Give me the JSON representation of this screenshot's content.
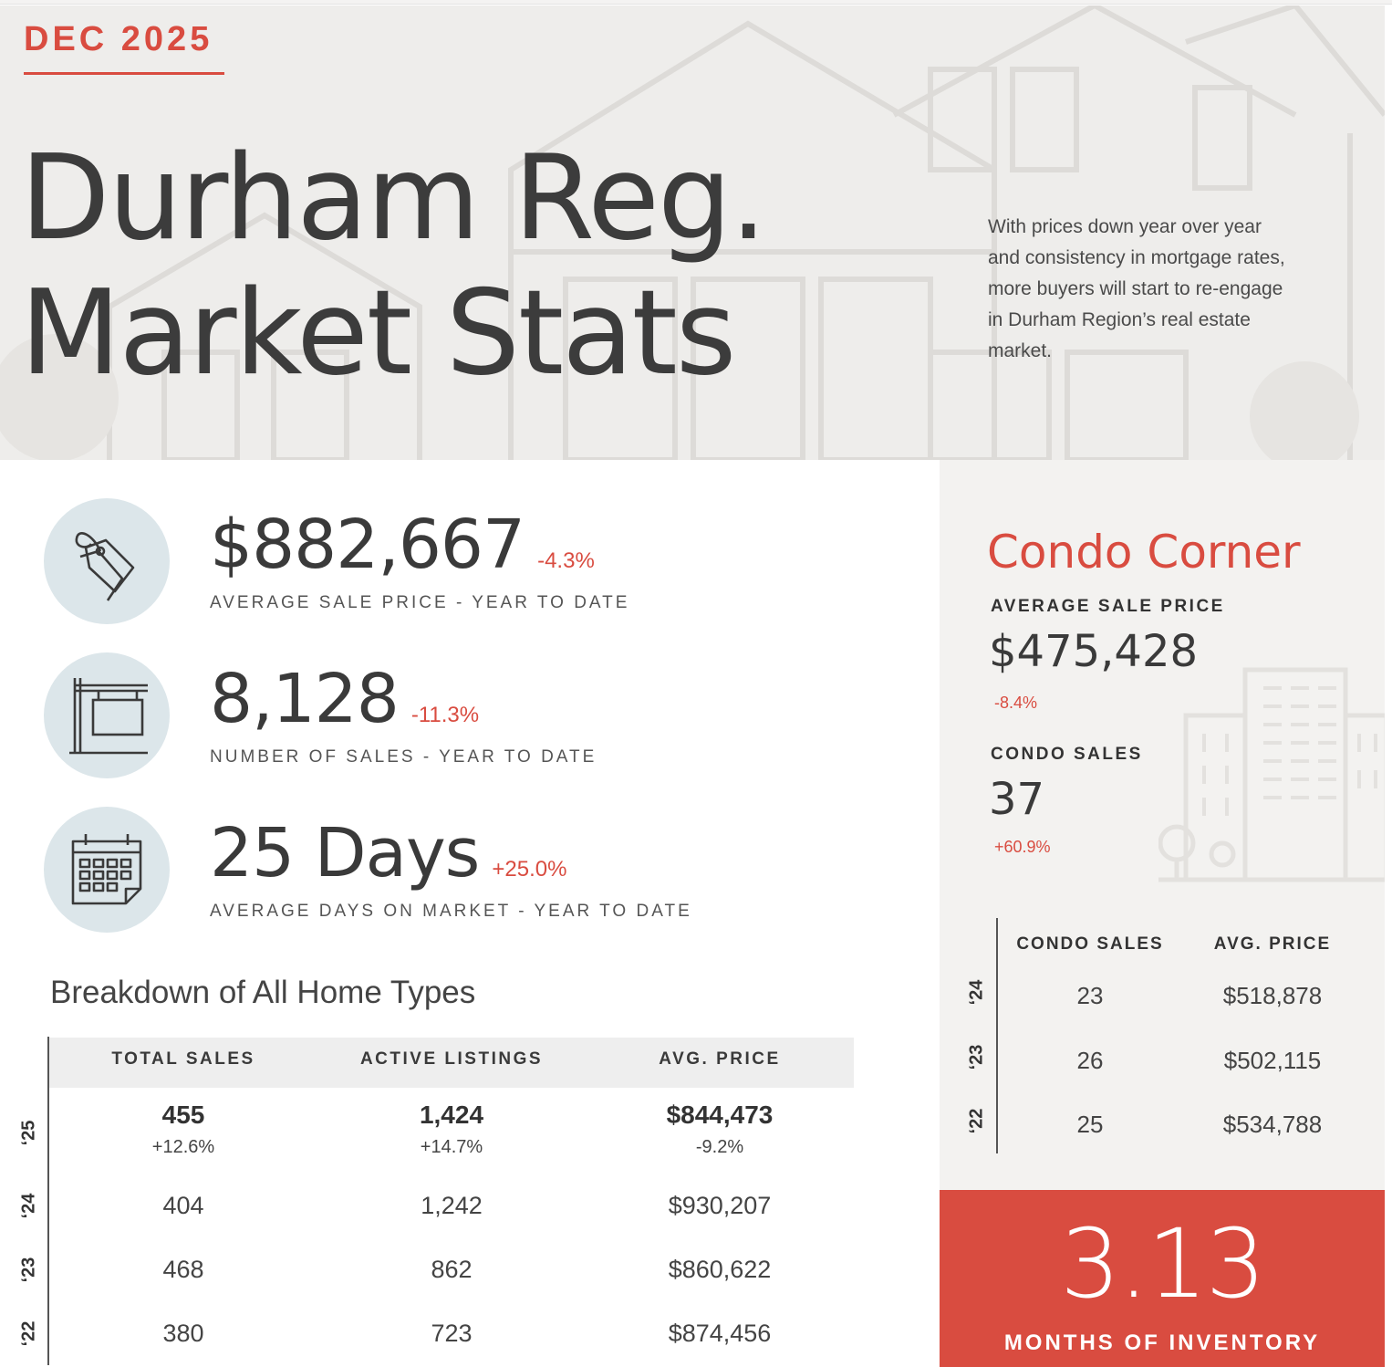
{
  "header": {
    "month": "DEC 2025",
    "title_line1": "Durham Reg.",
    "title_line2": "Market Stats",
    "intro": "With prices down year over year and consistency in mortgage rates, more buyers will start to re-engage in Durham Region’s real estate market."
  },
  "stats": [
    {
      "icon": "price-tag-icon",
      "value": "$882,667",
      "change": "-4.3%",
      "label": "AVERAGE SALE PRICE - YEAR TO DATE"
    },
    {
      "icon": "for-sale-sign-icon",
      "value": "8,128",
      "change": "-11.3%",
      "label": "NUMBER OF SALES - YEAR TO DATE"
    },
    {
      "icon": "calendar-icon",
      "value": "25 Days",
      "change": "+25.0%",
      "label": "AVERAGE DAYS ON MARKET - YEAR TO DATE"
    }
  ],
  "breakdown": {
    "title": "Breakdown of All Home Types",
    "headers": [
      "TOTAL SALES",
      "ACTIVE LISTINGS",
      "AVG. PRICE"
    ],
    "rows": [
      {
        "year": "‘25",
        "values": [
          "455",
          "1,424",
          "$844,473"
        ],
        "changes": [
          "+12.6%",
          "+14.7%",
          "-9.2%"
        ]
      },
      {
        "year": "‘24",
        "values": [
          "404",
          "1,242",
          "$930,207"
        ]
      },
      {
        "year": "‘23",
        "values": [
          "468",
          "862",
          "$860,622"
        ]
      },
      {
        "year": "‘22",
        "values": [
          "380",
          "723",
          "$874,456"
        ]
      }
    ]
  },
  "condo": {
    "title": "Condo Corner",
    "avg_price_label": "AVERAGE SALE PRICE",
    "avg_price": "$475,428",
    "avg_price_change": "-8.4%",
    "sales_label": "CONDO SALES",
    "sales": "37",
    "sales_change": "+60.9%",
    "table_headers": [
      "CONDO SALES",
      "AVG. PRICE"
    ],
    "table_rows": [
      {
        "year": "‘24",
        "sales": "23",
        "price": "$518,878"
      },
      {
        "year": "‘23",
        "sales": "26",
        "price": "$502,115"
      },
      {
        "year": "‘22",
        "sales": "25",
        "price": "$534,788"
      }
    ]
  },
  "inventory": {
    "value": "3.13",
    "label": "MONTHS OF INVENTORY"
  },
  "colors": {
    "accent": "#d94c40",
    "icon_circle": "#dce6ea",
    "sidebar_bg": "#f3f2f0",
    "hero_bg": "#eeedeb"
  }
}
